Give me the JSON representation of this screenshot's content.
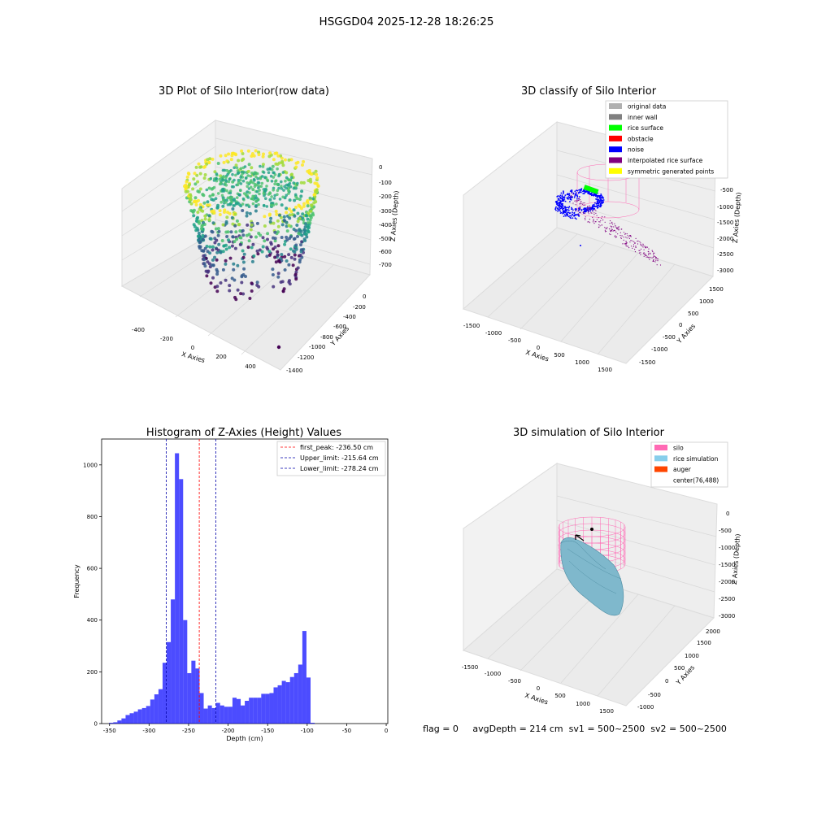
{
  "suptitle": "HSGGD04 2025-12-28 18:26:25",
  "panels": {
    "raw": {
      "title": "3D Plot of Silo Interior(row data)",
      "xlabel": "X Axies",
      "ylabel": "Y Axies",
      "zlabel": "Z Axies (Depth)",
      "xticks": [
        "-400",
        "-200",
        "0",
        "200",
        "400"
      ],
      "yticks": [
        "0",
        "-200",
        "-400",
        "-600",
        "-800",
        "-1000",
        "-1200",
        "-1400"
      ],
      "zticks": [
        "0",
        "-100",
        "-200",
        "-300",
        "-400",
        "-500",
        "-600",
        "-700"
      ]
    },
    "classify": {
      "title": "3D classify of Silo Interior",
      "xlabel": "X Axies",
      "ylabel": "Y Axies",
      "zlabel": "Z Axies (Depth)",
      "xticks": [
        "-1500",
        "-1000",
        "-500",
        "0",
        "500",
        "1000",
        "1500"
      ],
      "yticks": [
        "1500",
        "1000",
        "500",
        "0",
        "-500",
        "-1000",
        "-1500"
      ],
      "zticks": [
        "-500",
        "-1000",
        "-1500",
        "-2000",
        "-2500",
        "-3000"
      ],
      "legend": [
        {
          "label": "original data",
          "color": "#b0b0b0"
        },
        {
          "label": "inner wall",
          "color": "#808080"
        },
        {
          "label": "rice surface",
          "color": "#00ff00"
        },
        {
          "label": "obstacle",
          "color": "#ff0000"
        },
        {
          "label": "noise",
          "color": "#0000ff"
        },
        {
          "label": "interpolated rice surface",
          "color": "#800080"
        },
        {
          "label": "symmetric generated points",
          "color": "#ffff00"
        }
      ]
    },
    "simulation": {
      "title": "3D simulation of Silo Interior",
      "xlabel": "X Axies",
      "ylabel": "Y Axies",
      "zlabel": "Z Axies (Depth)",
      "xticks": [
        "-1500",
        "-1000",
        "-500",
        "0",
        "500",
        "1000",
        "1500"
      ],
      "yticks": [
        "2000",
        "1500",
        "1000",
        "500",
        "0",
        "-500",
        "-1000"
      ],
      "zticks": [
        "0",
        "-500",
        "-1000",
        "-1500",
        "-2000",
        "-2500",
        "-3000"
      ],
      "legend": [
        {
          "label": "silo",
          "color": "#ff69b4"
        },
        {
          "label": "rice simulation",
          "color": "#87ceeb"
        },
        {
          "label": "auger",
          "color": "#ff4500"
        },
        {
          "label": "center(76,488)",
          "color": ""
        }
      ]
    }
  },
  "status_text": "flag = 0     avgDepth = 214 cm  sv1 = 500~2500  sv2 = 500~2500",
  "chart_data": [
    {
      "type": "histogram",
      "title": "Histogram of Z-Axies (Height) Values",
      "xlabel": "Depth (cm)",
      "ylabel": "Frequency",
      "xlim": [
        -360,
        2
      ],
      "ylim": [
        0,
        1100
      ],
      "xticks": [
        -350,
        -300,
        -250,
        -200,
        -150,
        -100,
        -50,
        0
      ],
      "yticks": [
        0,
        200,
        400,
        600,
        800,
        1000
      ],
      "bin_width": 5.2,
      "bins_start": -350.5,
      "values": [
        3,
        5,
        12,
        20,
        33,
        40,
        46,
        55,
        60,
        68,
        93,
        113,
        133,
        235,
        315,
        480,
        1045,
        945,
        400,
        195,
        243,
        213,
        118,
        58,
        70,
        60,
        80,
        70,
        65,
        65,
        100,
        95,
        70,
        88,
        100,
        100,
        100,
        115,
        115,
        118,
        140,
        148,
        165,
        160,
        180,
        195,
        228,
        358,
        178,
        3
      ],
      "color": "#0000ff",
      "lines": [
        {
          "label": "first_peak: -236.50 cm",
          "x": -236.5,
          "color": "#ff0000"
        },
        {
          "label": "Upper_limit: -215.64 cm",
          "x": -215.64,
          "color": "#0000aa"
        },
        {
          "label": "Lower_limit: -278.24 cm",
          "x": -278.24,
          "color": "#0000aa"
        }
      ],
      "legend_position": "top-right"
    }
  ]
}
